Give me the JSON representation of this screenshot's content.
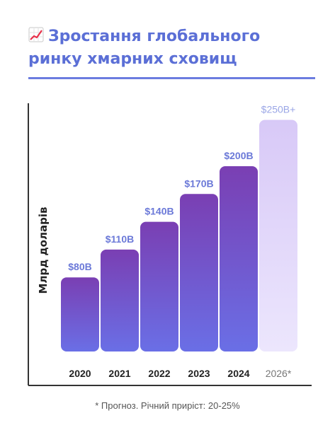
{
  "title": {
    "line1": "Зростання глобального",
    "line2": "ринку хмарних сховищ",
    "icon": "chart-increasing-icon"
  },
  "footnote": "* Прогноз. Річний приріст: 20-25%",
  "colors": {
    "title": "#5b6fd6",
    "bar_top": "#7a3fb3",
    "bar_bottom": "#6a6fe6",
    "forecast_top": "#d8c9f7",
    "forecast_bottom": "#ece6fd",
    "label": "#6b79d8",
    "forecast_label": "#9aa6e6"
  },
  "chart_data": {
    "type": "bar",
    "ylabel": "Млрд доларів",
    "xlabel": "",
    "categories": [
      "2020",
      "2021",
      "2022",
      "2023",
      "2024",
      "2026*"
    ],
    "values": [
      80,
      110,
      140,
      170,
      200,
      250
    ],
    "value_labels": [
      "$80B",
      "$110B",
      "$140B",
      "$170B",
      "$200B",
      "$250B+"
    ],
    "forecast": [
      false,
      false,
      false,
      false,
      false,
      true
    ],
    "grid": false
  }
}
